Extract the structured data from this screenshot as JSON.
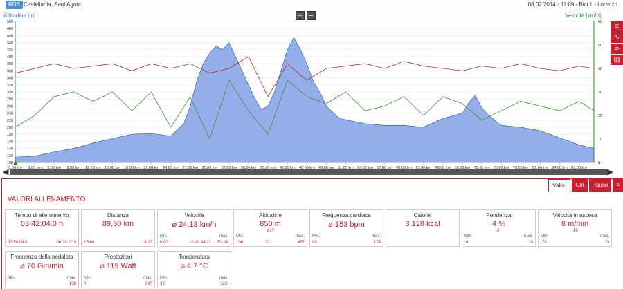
{
  "header": {
    "badge": "RDB",
    "location": "Castellania, Sant'Agata",
    "meta": "08.02.2014  -  11:09  -  Bici 1  -  Lorenzo"
  },
  "chart": {
    "left_axis_title": "Altitudine [m]",
    "right_axis_title": "Velocità [km/h]",
    "zoom_in": "+",
    "zoom_out": "−"
  },
  "rail": {
    "icons": [
      "bars-icon",
      "line-chart-icon",
      "compass-icon",
      "bar-chart-icon"
    ]
  },
  "chart_data": {
    "type": "area",
    "x_unit": "km",
    "x_ticks": [
      "0,00 km",
      "3,00 km",
      "6,00 km",
      "9,00 km",
      "12,00 km",
      "15,00 km",
      "18,00 km",
      "21,00 km",
      "24,00 km",
      "27,00 km",
      "30,00 km",
      "33,00 km",
      "36,00 km",
      "39,00 km",
      "42,00 km",
      "45,00 km",
      "48,00 km",
      "51,00 km",
      "54,00 km",
      "57,00 km",
      "60,00 km",
      "63,00 km",
      "66,00 km",
      "69,00 km",
      "72,00 km",
      "75,00 km",
      "78,00 km",
      "81,00 km",
      "84,00 km",
      "87,00 km"
    ],
    "y_left_ticks": [
      "100",
      "120",
      "140",
      "160",
      "180",
      "200",
      "220",
      "240",
      "260",
      "280",
      "300",
      "320",
      "340",
      "360",
      "380",
      "400",
      "420",
      "440",
      "460",
      "480",
      "500"
    ],
    "y_right_ticks": [
      "0",
      "10",
      "20",
      "30",
      "40",
      "50",
      "60"
    ],
    "ylim_left": [
      100,
      500
    ],
    "ylim_right": [
      0,
      60
    ],
    "xlim": [
      0,
      89.3
    ],
    "colors": {
      "altitude": "#6f93e0",
      "speed": "#3a8f3a",
      "heart": "#b5243a"
    },
    "series": [
      {
        "name": "Altitudine [m]",
        "x": [
          0,
          3,
          6,
          9,
          12,
          15,
          18,
          21,
          24,
          26,
          27,
          28,
          29,
          30,
          31,
          32,
          33,
          34,
          35,
          36,
          37,
          38,
          39,
          40,
          41,
          42,
          43,
          44,
          45,
          46,
          47,
          48,
          50,
          54,
          57,
          60,
          63,
          66,
          69,
          70,
          71,
          72,
          73,
          75,
          78,
          81,
          84,
          87,
          89.3
        ],
        "values": [
          115,
          118,
          130,
          140,
          155,
          168,
          180,
          182,
          175,
          210,
          260,
          330,
          380,
          410,
          430,
          420,
          440,
          400,
          360,
          320,
          280,
          250,
          260,
          300,
          360,
          420,
          455,
          420,
          380,
          330,
          300,
          260,
          225,
          210,
          205,
          205,
          200,
          225,
          240,
          270,
          290,
          255,
          235,
          205,
          200,
          190,
          170,
          150,
          140
        ]
      },
      {
        "name": "Velocità [km/h]",
        "x": [
          0,
          3,
          6,
          9,
          12,
          15,
          18,
          21,
          24,
          27,
          30,
          33,
          36,
          39,
          42,
          45,
          48,
          51,
          54,
          57,
          60,
          63,
          66,
          69,
          72,
          75,
          78,
          81,
          84,
          87,
          89.3
        ],
        "values": [
          15,
          20,
          28,
          30,
          26,
          30,
          22,
          30,
          15,
          28,
          10,
          35,
          22,
          12,
          35,
          28,
          25,
          30,
          22,
          24,
          28,
          20,
          28,
          25,
          18,
          22,
          26,
          24,
          22,
          26,
          22
        ]
      },
      {
        "name": "Frequenza cardiaca",
        "x": [
          0,
          3,
          6,
          9,
          12,
          15,
          18,
          21,
          24,
          27,
          30,
          33,
          36,
          39,
          42,
          45,
          48,
          51,
          54,
          57,
          60,
          63,
          66,
          69,
          72,
          75,
          78,
          81,
          84,
          87,
          89.3
        ],
        "values": [
          38,
          40,
          42,
          40,
          41,
          42,
          39,
          42,
          40,
          42,
          38,
          40,
          45,
          28,
          42,
          35,
          40,
          41,
          42,
          40,
          43,
          41,
          40,
          39,
          41,
          40,
          42,
          40,
          39,
          41,
          40
        ]
      }
    ]
  },
  "panel": {
    "tabs": [
      "Valori",
      "Giri",
      "Pause"
    ],
    "title": "VALORI ALLENAMENTO",
    "cards": [
      {
        "id": "tempo",
        "title": "Tempo di allenamento",
        "main": "03:42:04.0 h",
        "l_val": "00:58:04.0",
        "r_val": "00:28:22.0"
      },
      {
        "id": "distanza",
        "title": "Distanza",
        "main": "89,30 km",
        "l_val": "15,60",
        "r_val": "16,17"
      },
      {
        "id": "velocita",
        "title": "Velocità",
        "main": "⌀ 24,13 km/h",
        "l_lab": "Min.",
        "r_lab": "max.",
        "l_val": "0,00",
        "m_val": "16,12  34,22",
        "r_val": "52,16"
      },
      {
        "id": "altitudine",
        "title": "Altitudine",
        "main": "850 m",
        "sub": "817",
        "l_lab": "Min.",
        "r_lab": "max.",
        "l_val": "106",
        "m_val": "221",
        "r_val": "457"
      },
      {
        "id": "frequenza",
        "title": "Frequenza cardiaca",
        "main": "⌀ 153 bpm",
        "l_lab": "Min.",
        "r_lab": "max.",
        "l_val": "99",
        "r_val": "174"
      },
      {
        "id": "calorie",
        "title": "Calorie",
        "main": "3 128 kcal"
      },
      {
        "id": "pendenza",
        "title": "Pendenza",
        "main": "4 %",
        "sub": "-3",
        "l_lab": "Min.",
        "r_lab": "max.",
        "l_val": "-9",
        "r_val": "10"
      },
      {
        "id": "velasc",
        "title": "Velocità in ascesa",
        "main": "8 m/min",
        "sub": "-18",
        "l_lab": "Min.",
        "r_lab": "max.",
        "l_val": "-78",
        "r_val": "19"
      },
      {
        "id": "pedalata",
        "title": "Frequenza della pedalata",
        "main": "⌀ 70 Giri/min",
        "l_lab": "Min.",
        "r_lab": "max.",
        "l_val": "",
        "r_val": "108"
      },
      {
        "id": "prestazioni",
        "title": "Prestazioni",
        "main": "⌀ 119 Watt",
        "l_lab": "Min.",
        "r_lab": "max.",
        "l_val": "0",
        "r_val": "347"
      },
      {
        "id": "temperatura",
        "title": "Temperatura",
        "main": "⌀ 4,7 °C",
        "l_lab": "Min.",
        "r_lab": "max.",
        "l_val": "3,0",
        "r_val": "12,0"
      }
    ]
  }
}
